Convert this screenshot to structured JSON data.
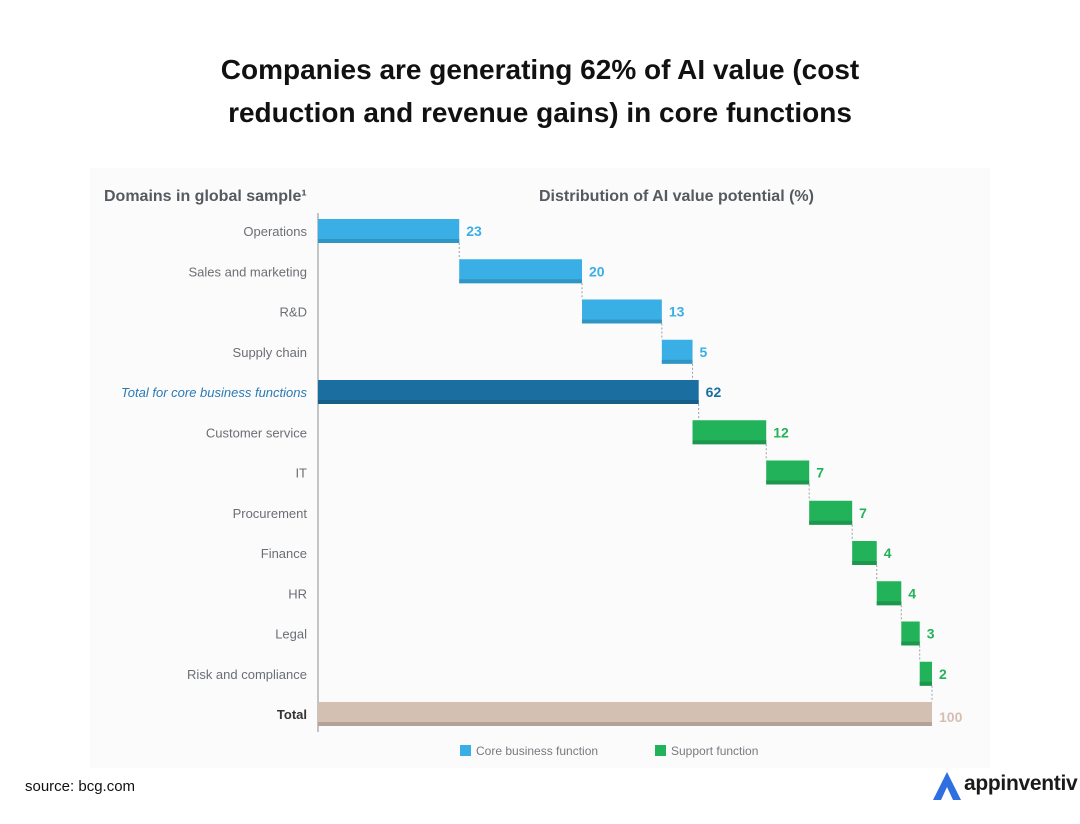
{
  "title_line1": "Companies are generating 62% of AI value (cost",
  "title_line2": "reduction and revenue gains) in core functions",
  "source": "source: bcg.com",
  "brand": "appinventiv",
  "colors": {
    "core": "#3aafe6",
    "core_total": "#1a6ea0",
    "support": "#22b25a",
    "total": "#d4bfb3",
    "label": "#6b6f74",
    "core_total_label": "#2a7ab5"
  },
  "chart_data": {
    "type": "waterfall",
    "title": "Distribution of AI value potential (%)",
    "ylabel": "Domains in global sample¹",
    "xlim": [
      0,
      100
    ],
    "categories": [
      {
        "label": "Operations",
        "value": 23,
        "kind": "core"
      },
      {
        "label": "Sales and marketing",
        "value": 20,
        "kind": "core"
      },
      {
        "label": "R&D",
        "value": 13,
        "kind": "core"
      },
      {
        "label": "Supply chain",
        "value": 5,
        "kind": "core"
      },
      {
        "label": "Total for core business functions",
        "value": 62,
        "kind": "core_total"
      },
      {
        "label": "Customer service",
        "value": 12,
        "kind": "support"
      },
      {
        "label": "IT",
        "value": 7,
        "kind": "support"
      },
      {
        "label": "Procurement",
        "value": 7,
        "kind": "support"
      },
      {
        "label": "Finance",
        "value": 4,
        "kind": "support"
      },
      {
        "label": "HR",
        "value": 4,
        "kind": "support"
      },
      {
        "label": "Legal",
        "value": 3,
        "kind": "support"
      },
      {
        "label": "Risk and compliance",
        "value": 2,
        "kind": "support"
      },
      {
        "label": "Total",
        "value": 100,
        "kind": "total"
      }
    ],
    "legend": [
      {
        "label": "Core business function",
        "kind": "core"
      },
      {
        "label": "Support function",
        "kind": "support"
      }
    ],
    "legend_position": "bottom"
  }
}
